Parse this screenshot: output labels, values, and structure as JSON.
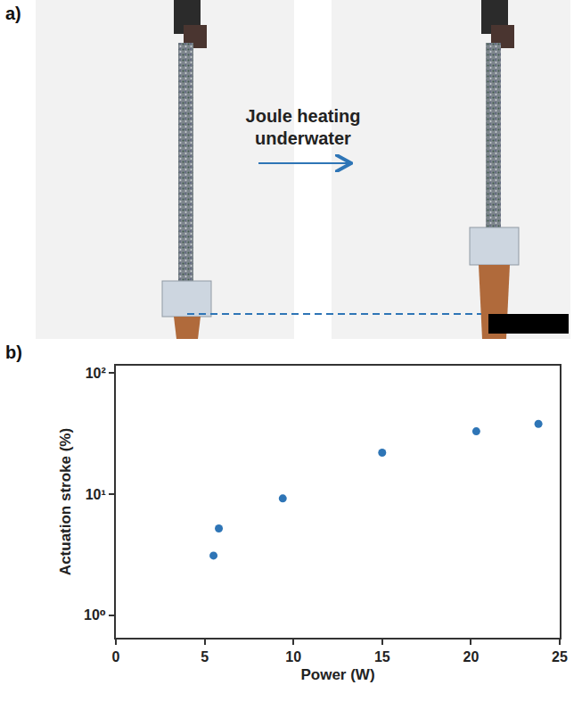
{
  "panel_a": {
    "label": "a)",
    "annotation": "Joule heating underwater"
  },
  "panel_b_label": "b)",
  "chart_data": {
    "type": "scatter",
    "x_label": "Power (W)",
    "y_label": "Actuation stroke (%)",
    "x": [
      5.5,
      5.8,
      9.4,
      15,
      20.3,
      23.8
    ],
    "values": [
      3.1,
      5.2,
      9.2,
      22,
      33,
      38
    ],
    "color": "#2e75b6",
    "marker": "circle",
    "log": "y",
    "grid": false,
    "xlim": [
      0,
      25
    ],
    "xticks": [
      0,
      5,
      10,
      15,
      20,
      25
    ],
    "ylim": [
      0.65,
      115
    ],
    "yticks": [
      {
        "value": 1,
        "label": "10⁰"
      },
      {
        "value": 10,
        "label": "10¹"
      },
      {
        "value": 100,
        "label": "10²"
      }
    ]
  }
}
